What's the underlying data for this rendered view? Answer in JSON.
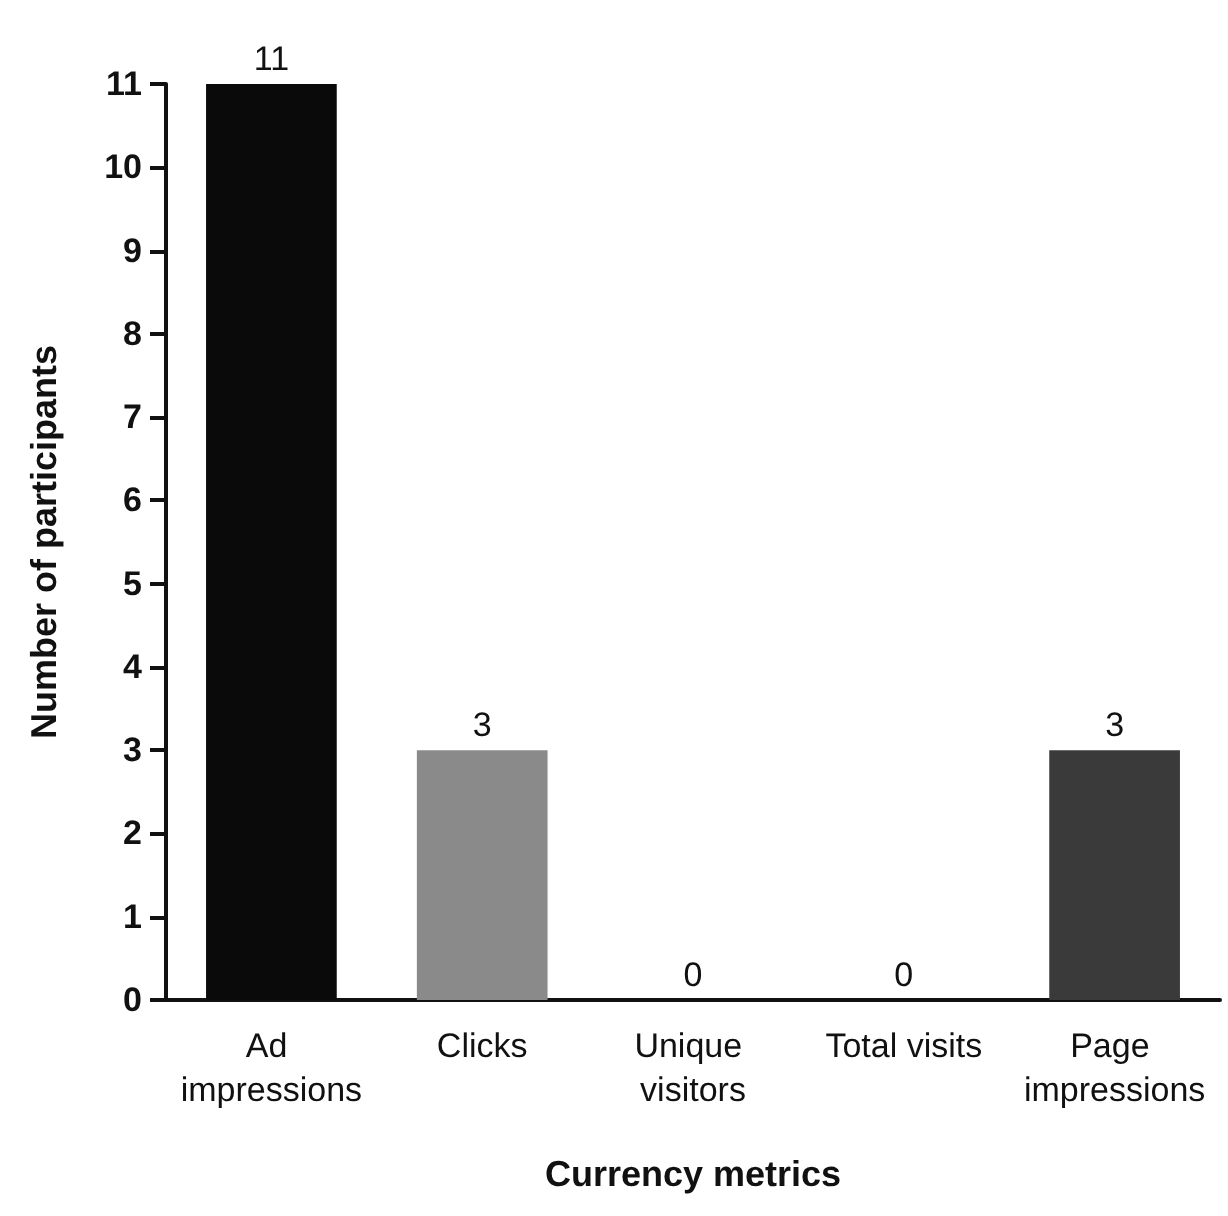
{
  "chart_data": {
    "type": "bar",
    "xlabel": "Currency metrics",
    "ylabel": "Number of participants",
    "categories": [
      "Ad impressions",
      "Clicks",
      "Unique visitors",
      "Total visits",
      "Page impressions"
    ],
    "values": [
      11,
      3,
      0,
      0,
      3
    ],
    "colors": [
      "#0a0a0a",
      "#8a8a8a",
      "#555555",
      "#555555",
      "#3a3a3a"
    ],
    "ylim": [
      0,
      11
    ],
    "yticks": [
      0,
      1,
      2,
      3,
      4,
      5,
      6,
      7,
      8,
      9,
      10,
      11
    ],
    "grid": false,
    "data_labels": true
  }
}
